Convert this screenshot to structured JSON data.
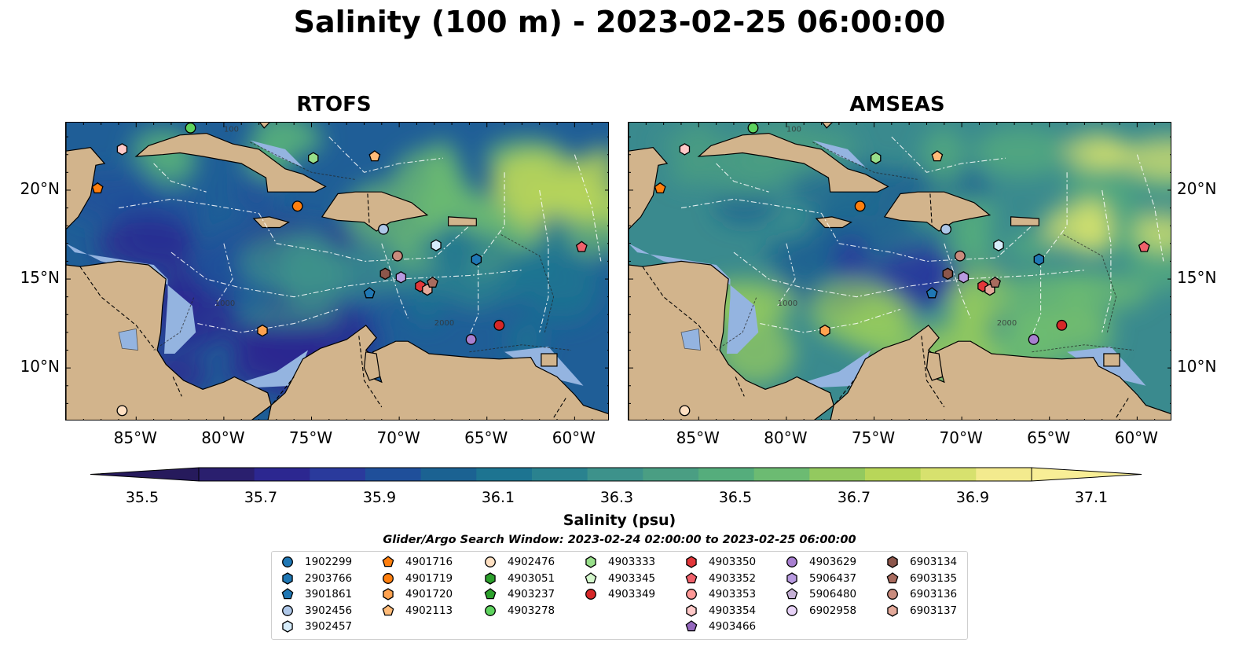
{
  "title": "Salinity (100 m) - 2023-02-25 06:00:00",
  "panels": [
    {
      "title": "RTOFS"
    },
    {
      "title": "AMSEAS"
    }
  ],
  "axes": {
    "lon_labels": [
      "85°W",
      "80°W",
      "75°W",
      "70°W",
      "65°W",
      "60°W"
    ],
    "lat_labels": [
      "20°N",
      "15°N",
      "10°N"
    ],
    "contour_labels": [
      "100",
      "1000",
      "2000"
    ]
  },
  "colorbar": {
    "label": "Salinity (psu)",
    "range": [
      35.5,
      37.1
    ],
    "ticks": [
      "35.5",
      "35.7",
      "35.9",
      "36.1",
      "36.3",
      "36.5",
      "36.7",
      "36.9",
      "37.1"
    ],
    "colors": [
      "#2a1f6e",
      "#2c2790",
      "#2a3a9c",
      "#1f4f9a",
      "#1b6292",
      "#1d7491",
      "#2a828f",
      "#3d928b",
      "#4a9e83",
      "#55ad7c",
      "#6cbb72",
      "#93c95f",
      "#b8d659",
      "#d7e16e",
      "#f3ea8e"
    ]
  },
  "search_window": "Glider/Argo Search Window: 2023-02-24 02:00:00 to 2023-02-25 06:00:00",
  "colors": {
    "land": "#d2b48c",
    "shallow_water": "#94b4e0",
    "rtofs_ocean": "#1f5e97",
    "amseas_ocean": "#3a8a8e"
  },
  "legend": {
    "items": [
      {
        "id": "1902299",
        "marker": "circle",
        "color": "#1f77b4"
      },
      {
        "id": "2903766",
        "marker": "hexagon",
        "color": "#1f77b4"
      },
      {
        "id": "3901861",
        "marker": "pentagon",
        "color": "#1f77b4"
      },
      {
        "id": "3902456",
        "marker": "circle",
        "color": "#aec7e8"
      },
      {
        "id": "3902457",
        "marker": "hexagon",
        "color": "#d6ecfa"
      },
      {
        "id": "4901716",
        "marker": "pentagon",
        "color": "#ff7f0e"
      },
      {
        "id": "4901719",
        "marker": "circle",
        "color": "#ff7f0e"
      },
      {
        "id": "4901720",
        "marker": "hexagon",
        "color": "#ffa24f"
      },
      {
        "id": "4902113",
        "marker": "pentagon",
        "color": "#ffbb78"
      },
      {
        "id": "4902476",
        "marker": "circle",
        "color": "#ffe0c2"
      },
      {
        "id": "4903051",
        "marker": "hexagon",
        "color": "#2ca02c"
      },
      {
        "id": "4903237",
        "marker": "pentagon",
        "color": "#2ca02c"
      },
      {
        "id": "4903278",
        "marker": "circle",
        "color": "#5ed35e"
      },
      {
        "id": "4903333",
        "marker": "hexagon",
        "color": "#98df8a"
      },
      {
        "id": "4903345",
        "marker": "pentagon",
        "color": "#d4f7cc"
      },
      {
        "id": "4903349",
        "marker": "circle",
        "color": "#d62728"
      },
      {
        "id": "4903350",
        "marker": "hexagon",
        "color": "#e2373a"
      },
      {
        "id": "4903352",
        "marker": "pentagon",
        "color": "#f0616b"
      },
      {
        "id": "4903353",
        "marker": "circle",
        "color": "#ff9896"
      },
      {
        "id": "4903354",
        "marker": "hexagon",
        "color": "#ffc9c8"
      },
      {
        "id": "4903466",
        "marker": "pentagon",
        "color": "#9467bd"
      },
      {
        "id": "4903629",
        "marker": "circle",
        "color": "#a87fd0"
      },
      {
        "id": "5906437",
        "marker": "hexagon",
        "color": "#b89ae0"
      },
      {
        "id": "5906480",
        "marker": "pentagon",
        "color": "#c5b0d5"
      },
      {
        "id": "6902958",
        "marker": "circle",
        "color": "#e7d2f7"
      },
      {
        "id": "6903134",
        "marker": "hexagon",
        "color": "#8c564b"
      },
      {
        "id": "6903135",
        "marker": "pentagon",
        "color": "#a86b5e"
      },
      {
        "id": "6903136",
        "marker": "circle",
        "color": "#c98b7d"
      },
      {
        "id": "6903137",
        "marker": "hexagon",
        "color": "#e3a99a"
      }
    ]
  },
  "observations": [
    {
      "id": "4902476",
      "lon": -85.8,
      "lat": 7.6
    },
    {
      "id": "4903354",
      "lon": -85.8,
      "lat": 22.3
    },
    {
      "id": "4901716",
      "lon": -87.2,
      "lat": 20.1
    },
    {
      "id": "4903278",
      "lon": -81.9,
      "lat": 23.5
    },
    {
      "id": "4903333",
      "lon": -74.9,
      "lat": 21.8
    },
    {
      "id": "4902113",
      "lon": -71.4,
      "lat": 21.9
    },
    {
      "id": "4901719",
      "lon": -75.8,
      "lat": 19.1
    },
    {
      "id": "3902456",
      "lon": -70.9,
      "lat": 17.8
    },
    {
      "id": "3902457",
      "lon": -67.9,
      "lat": 16.9
    },
    {
      "id": "2903766",
      "lon": -65.6,
      "lat": 16.1
    },
    {
      "id": "4903352",
      "lon": -59.6,
      "lat": 16.8
    },
    {
      "id": "6903136",
      "lon": -70.1,
      "lat": 16.3
    },
    {
      "id": "6903134",
      "lon": -70.8,
      "lat": 15.3
    },
    {
      "id": "5906437",
      "lon": -69.9,
      "lat": 15.1
    },
    {
      "id": "3901861",
      "lon": -71.7,
      "lat": 14.2
    },
    {
      "id": "4903350",
      "lon": -68.8,
      "lat": 14.6
    },
    {
      "id": "6903137",
      "lon": -68.4,
      "lat": 14.4
    },
    {
      "id": "6903135",
      "lon": -68.1,
      "lat": 14.8
    },
    {
      "id": "4901720",
      "lon": -77.8,
      "lat": 12.1
    },
    {
      "id": "4903349",
      "lon": -64.3,
      "lat": 12.4
    },
    {
      "id": "4903629",
      "lon": -65.9,
      "lat": 11.6
    }
  ]
}
